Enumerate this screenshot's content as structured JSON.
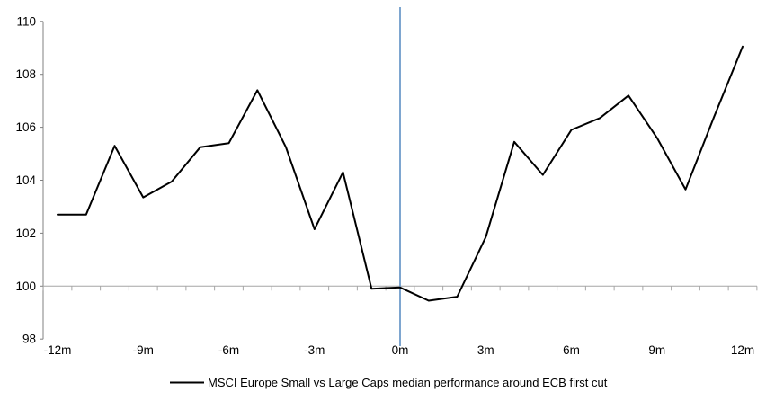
{
  "chart_data": {
    "type": "line",
    "title": "",
    "x": [
      -12,
      -11,
      -10,
      -9,
      -8,
      -7,
      -6,
      -5,
      -4,
      -3,
      -2,
      -1,
      0,
      1,
      2,
      3,
      4,
      5,
      6,
      7,
      8,
      9,
      10,
      11,
      12
    ],
    "series": [
      {
        "name": "MSCI Europe Small vs Large Caps median performance around ECB first cut",
        "values": [
          102.7,
          102.7,
          105.3,
          103.35,
          103.95,
          105.25,
          105.4,
          107.4,
          105.25,
          102.15,
          104.3,
          99.9,
          99.95,
          99.45,
          99.6,
          101.85,
          105.45,
          104.2,
          105.9,
          106.35,
          107.2,
          105.6,
          103.65,
          106.4,
          109.05
        ]
      }
    ],
    "ylim": [
      98,
      110
    ],
    "xlim": [
      -12.5,
      12.5
    ],
    "y_ticks": [
      110,
      108,
      106,
      104,
      102,
      100,
      98
    ],
    "x_tick_labels": [
      {
        "x": -12,
        "label": "-12m"
      },
      {
        "x": -9,
        "label": "-9m"
      },
      {
        "x": -6,
        "label": "-6m"
      },
      {
        "x": -3,
        "label": "-3m"
      },
      {
        "x": 0,
        "label": "0m"
      },
      {
        "x": 3,
        "label": "3m"
      },
      {
        "x": 6,
        "label": "6m"
      },
      {
        "x": 9,
        "label": "9m"
      },
      {
        "x": 12,
        "label": "12m"
      }
    ],
    "baseline": 100,
    "annotations": [
      {
        "type": "vline",
        "x": 0
      }
    ],
    "legend_position": "bottom-center",
    "grid": "none (single horizontal reference line at 100)",
    "colors": {
      "series": "#000000",
      "event_line": "#7EA6D0",
      "baseline": "#A6A6A6",
      "axis": "#808080",
      "text": "#000000"
    }
  }
}
